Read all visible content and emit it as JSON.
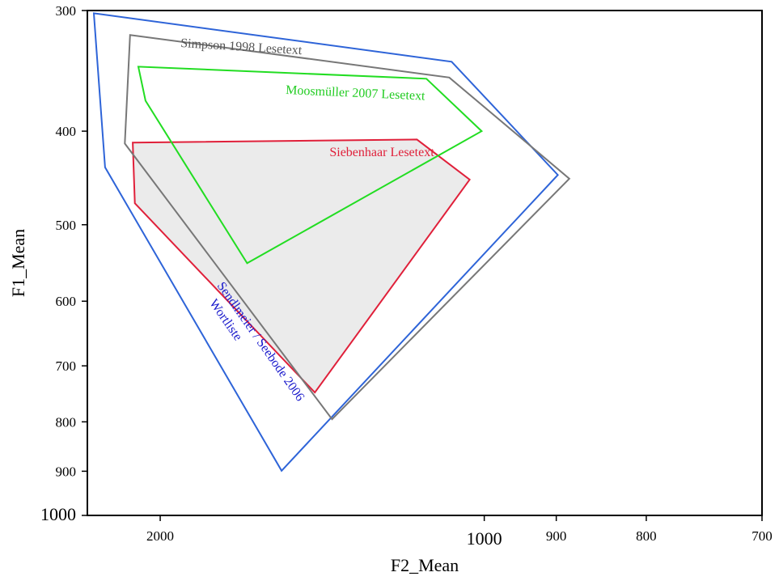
{
  "chart_data": {
    "type": "area",
    "xlabel": "F2_Mean",
    "ylabel": "F1_Mean",
    "x_scale": "reciprocal",
    "y_scale": "log",
    "x_reversed": true,
    "y_reversed": true,
    "xlim": [
      2580,
      700
    ],
    "ylim": [
      300,
      1000
    ],
    "x_ticks": [
      {
        "value": 2000,
        "label": "2000",
        "large": false
      },
      {
        "value": 1000,
        "label": "1000",
        "large": true
      },
      {
        "value": 900,
        "label": "900",
        "large": false
      },
      {
        "value": 800,
        "label": "800",
        "large": false
      },
      {
        "value": 700,
        "label": "700",
        "large": false
      }
    ],
    "y_ticks": [
      {
        "value": 300,
        "label": "300",
        "large": false
      },
      {
        "value": 400,
        "label": "400",
        "large": false
      },
      {
        "value": 500,
        "label": "500",
        "large": false
      },
      {
        "value": 600,
        "label": "600",
        "large": false
      },
      {
        "value": 700,
        "label": "700",
        "large": false
      },
      {
        "value": 800,
        "label": "800",
        "large": false
      },
      {
        "value": 900,
        "label": "900",
        "large": false
      },
      {
        "value": 1000,
        "label": "1000",
        "large": true
      }
    ],
    "grid": false,
    "series": [
      {
        "name": "Sendlmeier / Seebode 2006 Wortliste",
        "label_lines": [
          "Sendlmeier / Seebode 2006",
          "Wortliste"
        ],
        "color": "#2e64d8",
        "fill": "none",
        "points": [
          [
            2515,
            302
          ],
          [
            2410,
            436
          ],
          [
            1455,
            899
          ],
          [
            898,
            444
          ],
          [
            1053,
            339
          ]
        ]
      },
      {
        "name": "Simpson 1998 Lesetext",
        "label_lines": [
          "Simpson 1998 Lesetext"
        ],
        "color": "#777777",
        "fill": "none",
        "points": [
          [
            2205,
            318
          ],
          [
            2245,
            412
          ],
          [
            1307,
            795
          ],
          [
            884,
            448
          ],
          [
            1057,
            352
          ]
        ]
      },
      {
        "name": "Moosmüller 2007 Lesetext",
        "label_lines": [
          "Moosmüller 2007 Lesetext"
        ],
        "color": "#22dd22",
        "fill": "none",
        "points": [
          [
            2145,
            343
          ],
          [
            2095,
            372
          ],
          [
            1577,
            548
          ],
          [
            1004,
            400
          ],
          [
            1098,
            353
          ]
        ]
      },
      {
        "name": "Siebenhaar Lesetext",
        "label_lines": [
          "Siebenhaar Lesetext"
        ],
        "color": "#e0203a",
        "fill": "#ebebeb",
        "points": [
          [
            2185,
            411
          ],
          [
            2170,
            475
          ],
          [
            1354,
            746
          ],
          [
            1023,
            449
          ],
          [
            1116,
            408
          ]
        ]
      }
    ]
  }
}
